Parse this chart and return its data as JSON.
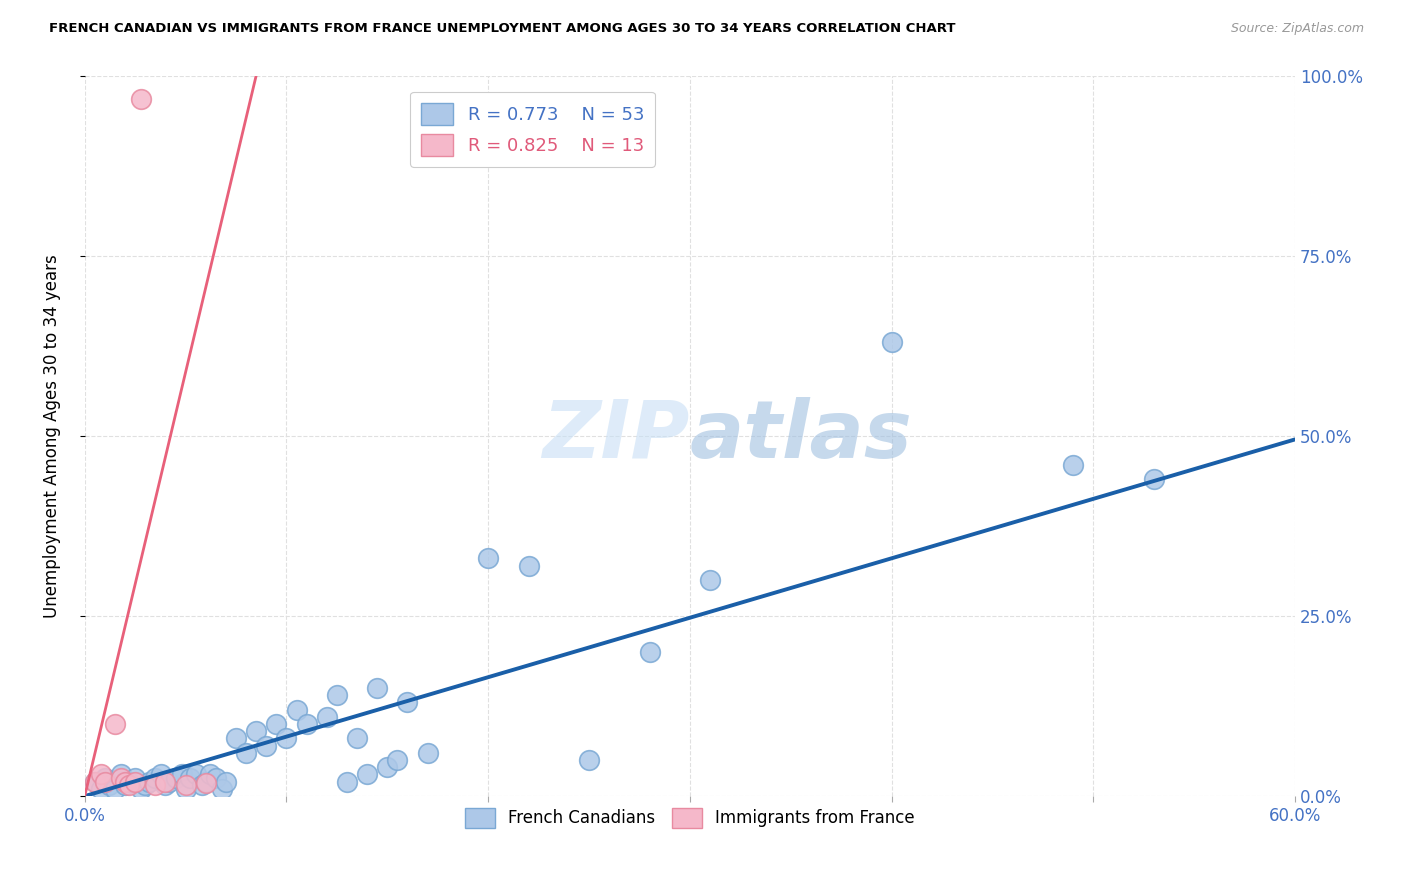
{
  "title": "FRENCH CANADIAN VS IMMIGRANTS FROM FRANCE UNEMPLOYMENT AMONG AGES 30 TO 34 YEARS CORRELATION CHART",
  "source": "Source: ZipAtlas.com",
  "ylabel": "Unemployment Among Ages 30 to 34 years",
  "xlim": [
    0.0,
    0.6
  ],
  "ylim": [
    0.0,
    1.0
  ],
  "xticks": [
    0.0,
    0.1,
    0.2,
    0.3,
    0.4,
    0.5,
    0.6
  ],
  "yticks": [
    0.0,
    0.25,
    0.5,
    0.75,
    1.0
  ],
  "yticklabels": [
    "0.0%",
    "25.0%",
    "50.0%",
    "75.0%",
    "100.0%"
  ],
  "blue_R": 0.773,
  "blue_N": 53,
  "pink_R": 0.825,
  "pink_N": 13,
  "blue_color": "#adc8e8",
  "blue_edge_color": "#7aa8d4",
  "blue_line_color": "#1a5fa8",
  "pink_color": "#f5b8ca",
  "pink_edge_color": "#e88aa0",
  "pink_line_color": "#e8607a",
  "watermark_color": "#d8eaf8",
  "blue_scatter_x": [
    0.005,
    0.008,
    0.01,
    0.012,
    0.015,
    0.018,
    0.02,
    0.022,
    0.025,
    0.028,
    0.03,
    0.032,
    0.035,
    0.038,
    0.04,
    0.042,
    0.045,
    0.048,
    0.05,
    0.052,
    0.055,
    0.058,
    0.06,
    0.062,
    0.065,
    0.068,
    0.07,
    0.075,
    0.08,
    0.085,
    0.09,
    0.095,
    0.1,
    0.105,
    0.11,
    0.12,
    0.125,
    0.13,
    0.135,
    0.14,
    0.145,
    0.15,
    0.155,
    0.16,
    0.17,
    0.2,
    0.22,
    0.25,
    0.28,
    0.31,
    0.4,
    0.49,
    0.53
  ],
  "blue_scatter_y": [
    0.02,
    0.01,
    0.025,
    0.015,
    0.01,
    0.03,
    0.015,
    0.02,
    0.025,
    0.01,
    0.015,
    0.02,
    0.025,
    0.03,
    0.015,
    0.02,
    0.025,
    0.03,
    0.01,
    0.025,
    0.03,
    0.015,
    0.02,
    0.03,
    0.025,
    0.01,
    0.02,
    0.08,
    0.06,
    0.09,
    0.07,
    0.1,
    0.08,
    0.12,
    0.1,
    0.11,
    0.14,
    0.02,
    0.08,
    0.03,
    0.15,
    0.04,
    0.05,
    0.13,
    0.06,
    0.33,
    0.32,
    0.05,
    0.2,
    0.3,
    0.63,
    0.46,
    0.44
  ],
  "pink_scatter_x": [
    0.005,
    0.008,
    0.01,
    0.015,
    0.018,
    0.02,
    0.022,
    0.025,
    0.028,
    0.035,
    0.04,
    0.05,
    0.06
  ],
  "pink_scatter_y": [
    0.02,
    0.03,
    0.02,
    0.1,
    0.025,
    0.02,
    0.015,
    0.02,
    0.968,
    0.015,
    0.02,
    0.015,
    0.018
  ],
  "blue_trend_x": [
    0.0,
    0.6
  ],
  "blue_trend_y": [
    0.0,
    0.495
  ],
  "pink_trend_x": [
    0.0,
    0.085
  ],
  "pink_trend_y": [
    0.0,
    1.0
  ]
}
